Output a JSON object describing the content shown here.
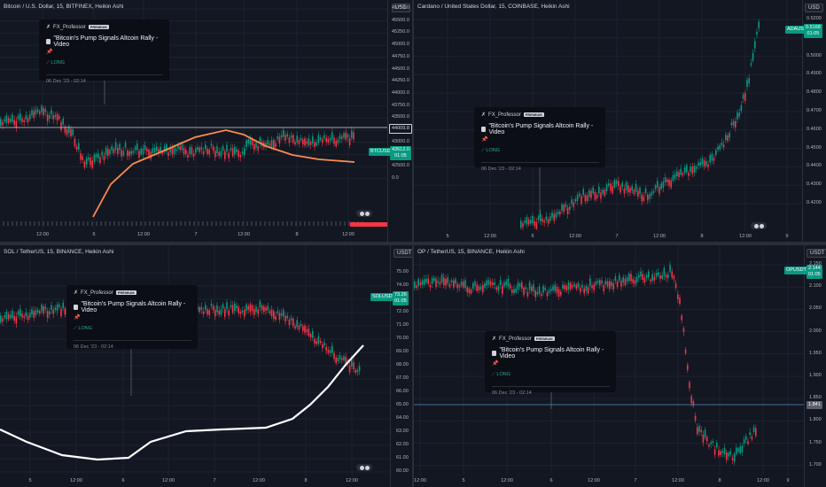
{
  "theme": {
    "bg": "#131722",
    "up": "#089981",
    "down": "#f23645",
    "ma_orange": "#ff8a50",
    "ma_white": "#ffffff",
    "grid": "#1e222d"
  },
  "idea_card": {
    "author": "FX_Professor",
    "badge": "PREMIUM",
    "title": "\"Bitcoin's Pump Signals Altcoin Rally - Video",
    "pin": "📌",
    "direction": "LONG",
    "date": "06 Dec '23 - 02:14"
  },
  "panes": [
    {
      "id": "btc",
      "title": "Bitcoin / U.S. Dollar, 15, BITFINEX, Heikin Ashi",
      "currency": "USD",
      "y_labels": [
        "45750.0",
        "45500.0",
        "45250.0",
        "45000.0",
        "44750.0",
        "44500.0",
        "44250.0",
        "44000.0",
        "43750.0",
        "43500.0",
        "43250.0",
        "43000.0",
        "42750.0",
        "42500.0",
        "0.0"
      ],
      "x_labels": [
        "12:00",
        "6",
        "12:00",
        "7",
        "12:00",
        "8",
        "12:00"
      ],
      "line_price": "44009.8",
      "symbol_tag": "BTCUSD",
      "price": "43612.0",
      "countdown": "01:05",
      "ylim": [
        42250,
        45950
      ],
      "ma_color": "#ff8a50"
    },
    {
      "id": "ada",
      "title": "Cardano / United States Dollar, 15, COINBASE, Heikin Ashi",
      "currency": "USD",
      "y_labels": [
        "0.5200",
        "0.5100",
        "0.5000",
        "0.4900",
        "0.4800",
        "0.4700",
        "0.4600",
        "0.4500",
        "0.4400",
        "0.4300",
        "0.4200"
      ],
      "x_labels": [
        "5",
        "12:00",
        "6",
        "12:00",
        "7",
        "12:00",
        "8",
        "12:00",
        "9"
      ],
      "symbol_tag": "ADAUSD",
      "price": "0.5168",
      "countdown": "01:05",
      "ylim": [
        0.414,
        0.527
      ]
    },
    {
      "id": "sol",
      "title": "SOL / TetherUS, 15, BINANCE, Heikin Ashi",
      "currency": "USDT",
      "y_labels": [
        "75.00",
        "74.00",
        "73.00",
        "72.00",
        "71.00",
        "70.00",
        "69.00",
        "68.00",
        "67.00",
        "66.00",
        "65.00",
        "64.00",
        "63.00",
        "62.00",
        "61.00",
        "60.00"
      ],
      "x_labels": [
        "5",
        "12:00",
        "6",
        "12:00",
        "7",
        "12:00",
        "8",
        "12:00"
      ],
      "symbol_tag": "SOLUSDT",
      "price": "73.26",
      "countdown": "01:05",
      "ylim": [
        59.8,
        76.0
      ],
      "ma_color": "#ffffff"
    },
    {
      "id": "op",
      "title": "OP / TetherUS, 15, BINANCE, Heikin Ashi",
      "currency": "USDT",
      "y_labels": [
        "2.150",
        "2.100",
        "2.050",
        "2.000",
        "1.950",
        "1.900",
        "1.850",
        "1.800",
        "1.750",
        "1.700"
      ],
      "x_labels": [
        "12:00",
        "5",
        "12:00",
        "6",
        "12:00",
        "7",
        "12:00",
        "8",
        "12:00",
        "9"
      ],
      "line_price": "1.841",
      "symbol_tag": "OPUSDT",
      "price": "2.144",
      "countdown": "01:05",
      "ylim": [
        1.68,
        2.2
      ]
    }
  ]
}
